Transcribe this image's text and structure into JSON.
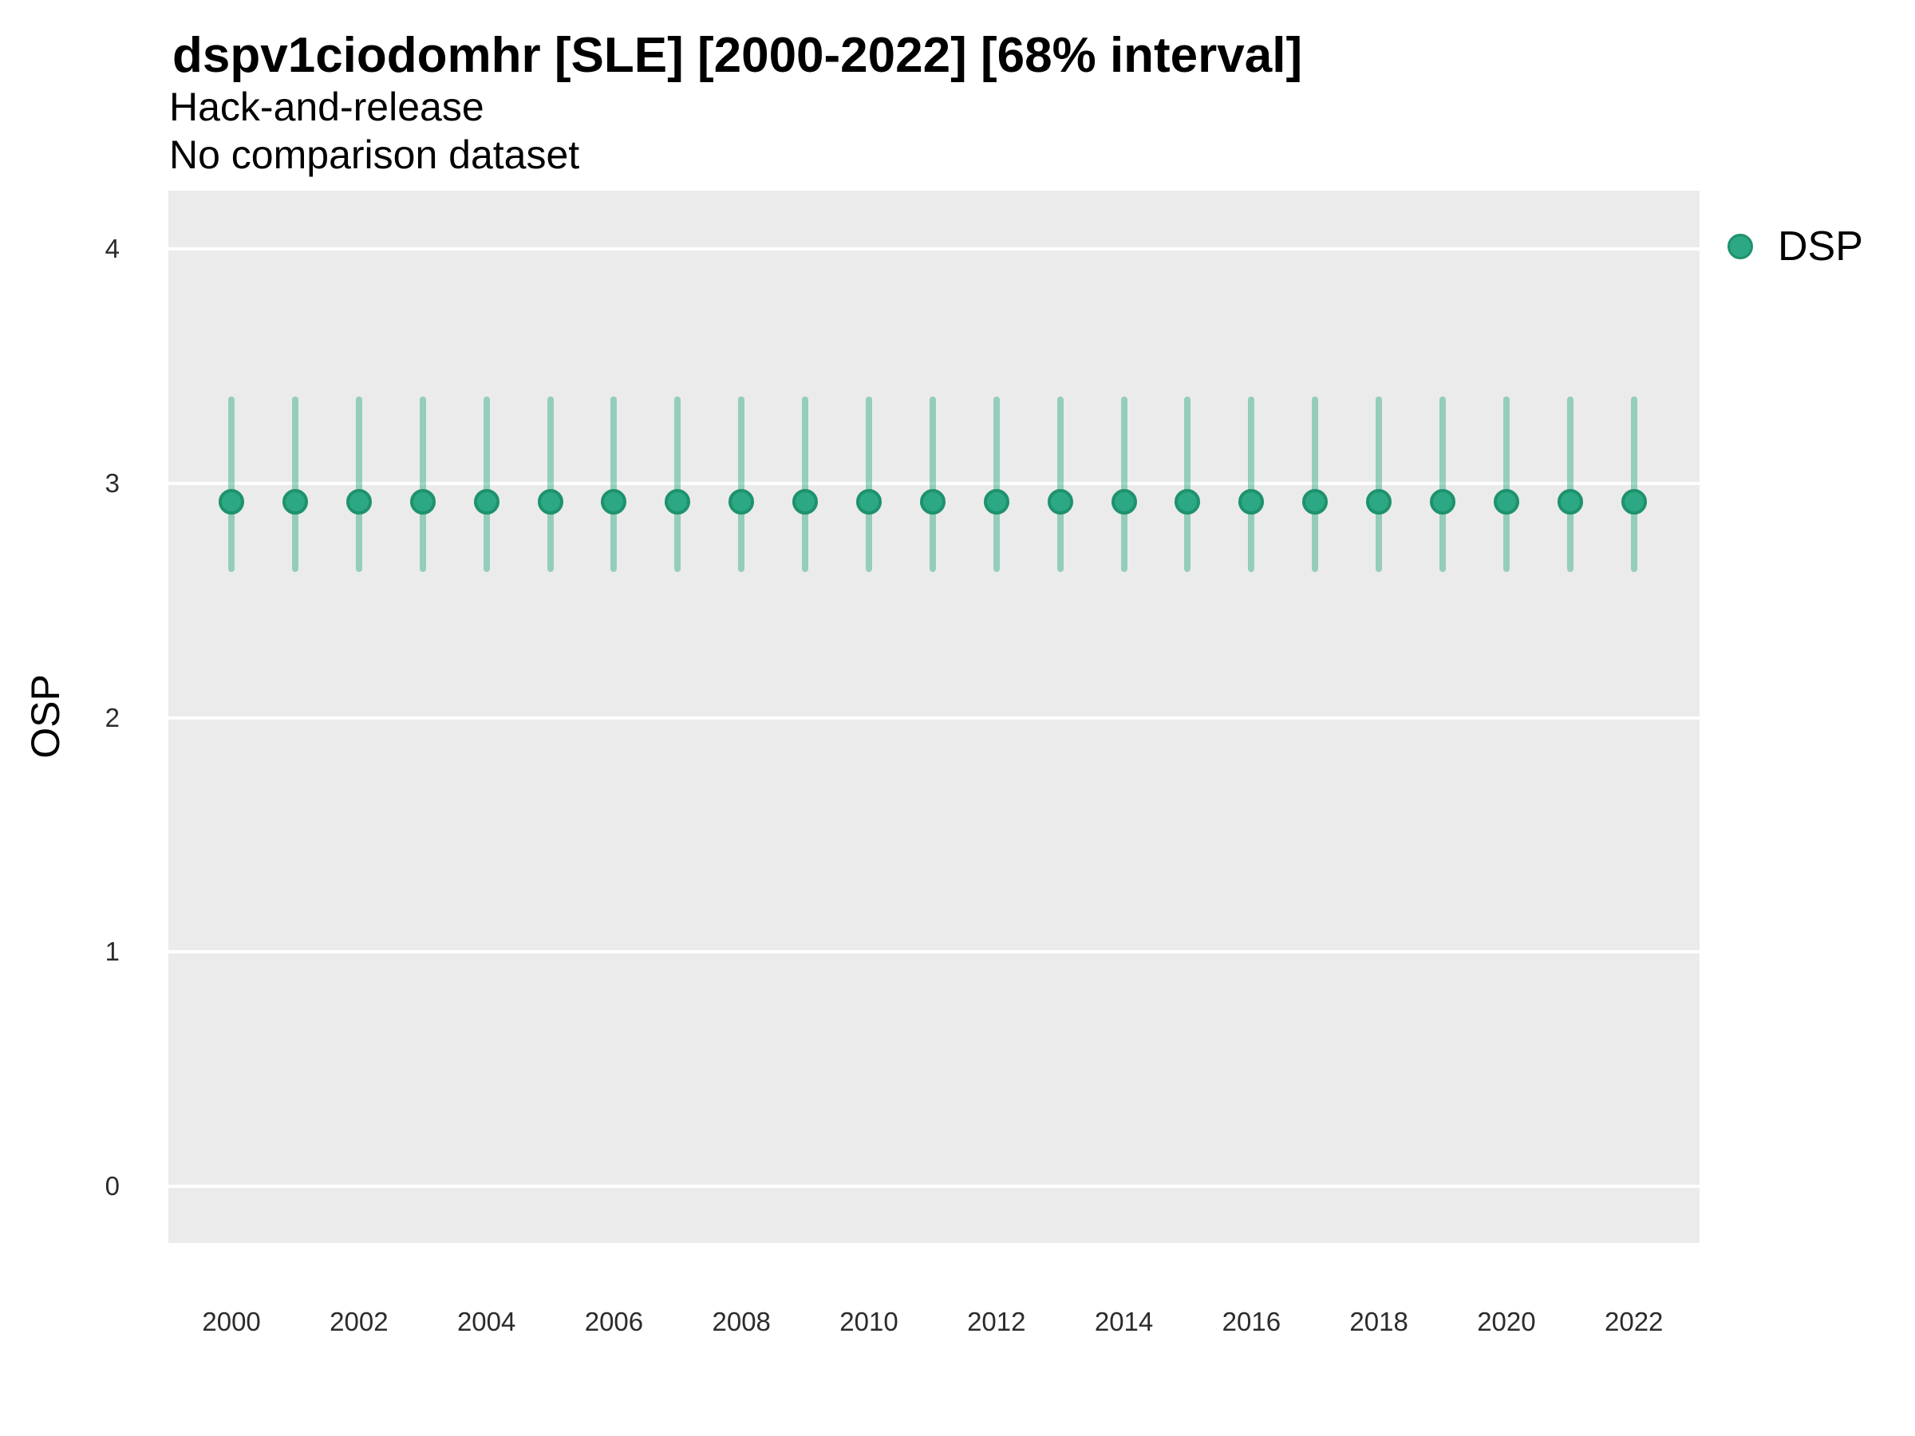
{
  "header": {
    "title": "dspv1ciodomhr [SLE] [2000-2022] [68% interval]",
    "subtitle_line1": "Hack-and-release",
    "subtitle_line2": "No comparison dataset"
  },
  "y_axis": {
    "label": "OSP"
  },
  "legend": {
    "items": [
      {
        "label": "DSP",
        "color": "#2DA884"
      }
    ]
  },
  "style": {
    "panel_bg": "#EBEBEB",
    "grid_color": "#FFFFFF",
    "point_fill": "#2DA884",
    "point_stroke": "#1E926C",
    "bar_color": "rgba(45,168,132,0.45)"
  },
  "chart_data": {
    "type": "pointrange",
    "title": "dspv1ciodomhr [SLE] [2000-2022] [68% interval]",
    "subtitle": [
      "Hack-and-release",
      "No comparison dataset"
    ],
    "xlabel": "",
    "ylabel": "OSP",
    "interval_label": "68% interval",
    "grid": "horizontal-major-only",
    "legend_position": "right-top",
    "x_ticks": [
      2000,
      2002,
      2004,
      2006,
      2008,
      2010,
      2012,
      2014,
      2016,
      2018,
      2020,
      2022
    ],
    "y_ticks": [
      0,
      1,
      2,
      3,
      4
    ],
    "x_domain": [
      1999.01,
      2023.03
    ],
    "y_domain": [
      -0.242,
      4.249
    ],
    "series": [
      {
        "name": "DSP",
        "color": "#2DA884",
        "points": [
          {
            "year": 2000,
            "value": 2.92,
            "lower": 2.62,
            "upper": 3.37
          },
          {
            "year": 2001,
            "value": 2.92,
            "lower": 2.62,
            "upper": 3.37
          },
          {
            "year": 2002,
            "value": 2.92,
            "lower": 2.62,
            "upper": 3.37
          },
          {
            "year": 2003,
            "value": 2.92,
            "lower": 2.62,
            "upper": 3.37
          },
          {
            "year": 2004,
            "value": 2.92,
            "lower": 2.62,
            "upper": 3.37
          },
          {
            "year": 2005,
            "value": 2.92,
            "lower": 2.62,
            "upper": 3.37
          },
          {
            "year": 2006,
            "value": 2.92,
            "lower": 2.62,
            "upper": 3.37
          },
          {
            "year": 2007,
            "value": 2.92,
            "lower": 2.62,
            "upper": 3.37
          },
          {
            "year": 2008,
            "value": 2.92,
            "lower": 2.62,
            "upper": 3.37
          },
          {
            "year": 2009,
            "value": 2.92,
            "lower": 2.62,
            "upper": 3.37
          },
          {
            "year": 2010,
            "value": 2.92,
            "lower": 2.62,
            "upper": 3.37
          },
          {
            "year": 2011,
            "value": 2.92,
            "lower": 2.62,
            "upper": 3.37
          },
          {
            "year": 2012,
            "value": 2.92,
            "lower": 2.62,
            "upper": 3.37
          },
          {
            "year": 2013,
            "value": 2.92,
            "lower": 2.62,
            "upper": 3.37
          },
          {
            "year": 2014,
            "value": 2.92,
            "lower": 2.62,
            "upper": 3.37
          },
          {
            "year": 2015,
            "value": 2.92,
            "lower": 2.62,
            "upper": 3.37
          },
          {
            "year": 2016,
            "value": 2.92,
            "lower": 2.62,
            "upper": 3.37
          },
          {
            "year": 2017,
            "value": 2.92,
            "lower": 2.62,
            "upper": 3.37
          },
          {
            "year": 2018,
            "value": 2.92,
            "lower": 2.62,
            "upper": 3.37
          },
          {
            "year": 2019,
            "value": 2.92,
            "lower": 2.62,
            "upper": 3.37
          },
          {
            "year": 2020,
            "value": 2.92,
            "lower": 2.62,
            "upper": 3.37
          },
          {
            "year": 2021,
            "value": 2.92,
            "lower": 2.62,
            "upper": 3.37
          },
          {
            "year": 2022,
            "value": 2.92,
            "lower": 2.62,
            "upper": 3.37
          }
        ]
      }
    ]
  }
}
